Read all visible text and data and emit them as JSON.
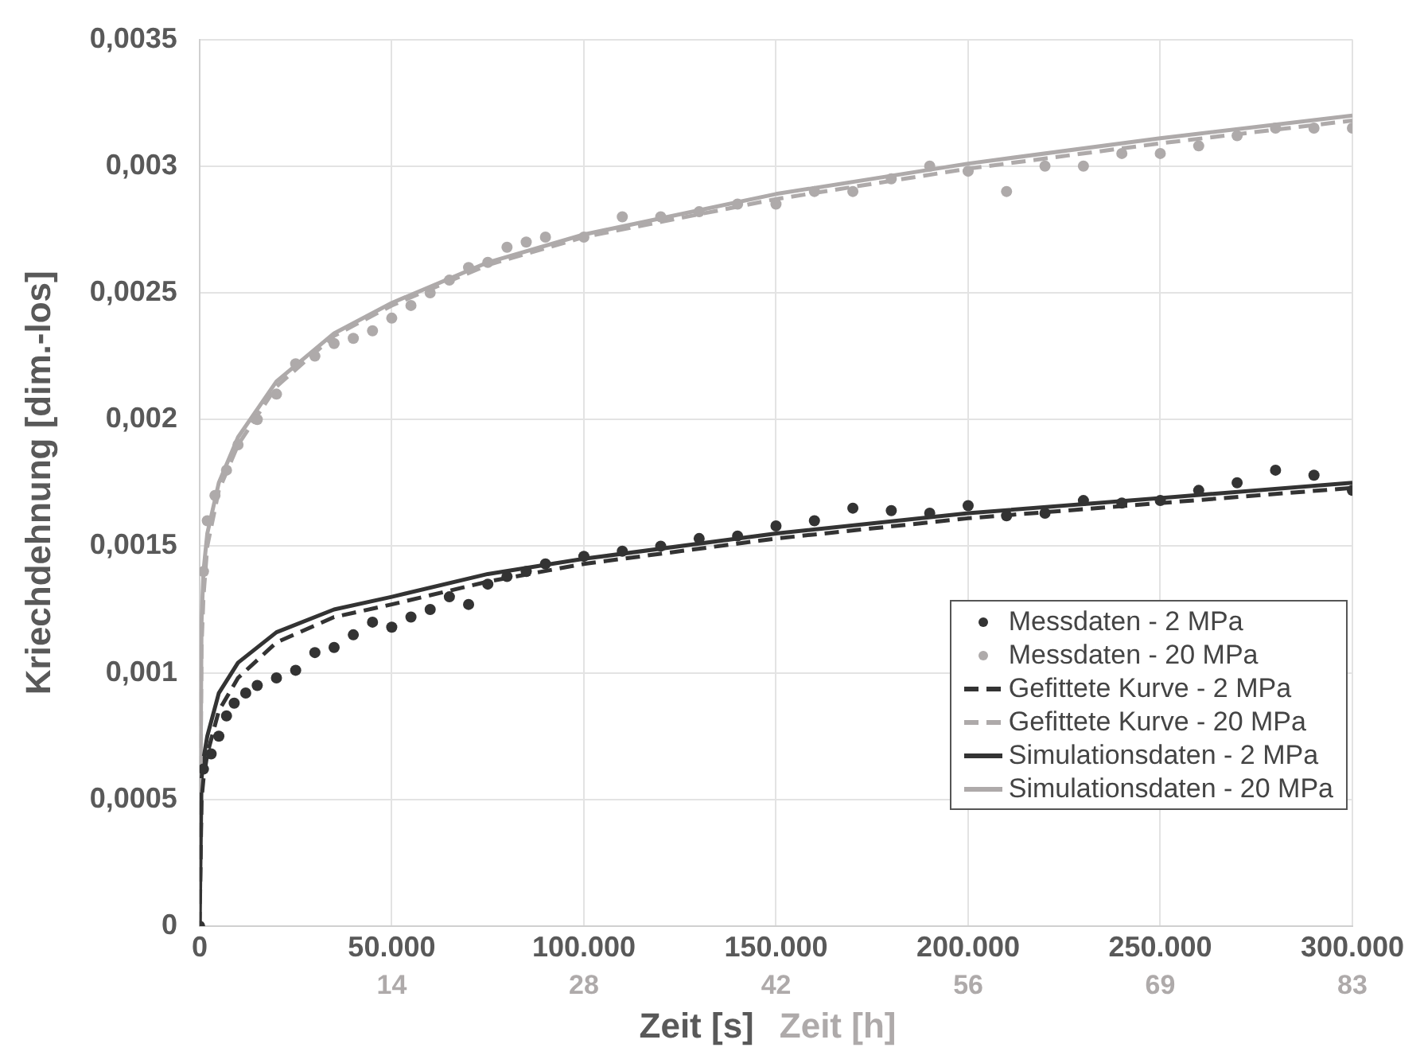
{
  "chart_data": {
    "type": "line",
    "xlabel": "Zeit [s]",
    "x2label": "Zeit [h]",
    "ylabel": "Kriechdehnung [dim.-los]",
    "xlim": [
      0,
      300000
    ],
    "xticks": [
      0,
      {
        "value": 50000,
        "label": "50.000"
      },
      {
        "value": 100000,
        "label": "100.000"
      },
      {
        "value": 150000,
        "label": "150.000"
      },
      {
        "value": 200000,
        "label": "200.000"
      },
      {
        "value": 250000,
        "label": "250.000"
      },
      {
        "value": 300000,
        "label": "300.000"
      }
    ],
    "x2lim": [
      0,
      83.33
    ],
    "x2ticks": [
      {
        "value": 13.89,
        "label": "14"
      },
      {
        "value": 27.78,
        "label": "28"
      },
      {
        "value": 41.67,
        "label": "42"
      },
      {
        "value": 55.56,
        "label": "56"
      },
      {
        "value": 69.44,
        "label": "69"
      },
      {
        "value": 83.33,
        "label": "83"
      }
    ],
    "ylim": [
      0,
      0.0035
    ],
    "yticks": [
      0,
      {
        "value": 0.0005,
        "label": "0,0005"
      },
      {
        "value": 0.001,
        "label": "0,001"
      },
      {
        "value": 0.0015,
        "label": "0,0015"
      },
      {
        "value": 0.002,
        "label": "0,002"
      },
      {
        "value": 0.0025,
        "label": "0,0025"
      },
      {
        "value": 0.003,
        "label": "0,003"
      },
      {
        "value": 0.0035,
        "label": "0,0035"
      }
    ],
    "grid": true,
    "legend": "bottom right",
    "series": [
      {
        "name": "Messdaten - 2 MPa",
        "type": "scatter",
        "marker": "circle",
        "color": "#333333",
        "x": [
          0,
          1000,
          3000,
          5000,
          7000,
          9000,
          12000,
          15000,
          20000,
          25000,
          30000,
          35000,
          40000,
          45000,
          50000,
          55000,
          60000,
          65000,
          70000,
          75000,
          80000,
          85000,
          90000,
          100000,
          110000,
          120000,
          130000,
          140000,
          150000,
          160000,
          170000,
          180000,
          190000,
          200000,
          210000,
          220000,
          230000,
          240000,
          250000,
          260000,
          270000,
          280000,
          290000,
          300000
        ],
        "values": [
          0,
          0.00062,
          0.00068,
          0.00075,
          0.00083,
          0.00088,
          0.00092,
          0.00095,
          0.00098,
          0.00101,
          0.00108,
          0.0011,
          0.00115,
          0.0012,
          0.00118,
          0.00122,
          0.00125,
          0.0013,
          0.00127,
          0.00135,
          0.00138,
          0.0014,
          0.00143,
          0.00146,
          0.00148,
          0.0015,
          0.00153,
          0.00154,
          0.00158,
          0.0016,
          0.00165,
          0.00164,
          0.00163,
          0.00166,
          0.00162,
          0.00163,
          0.00168,
          0.00167,
          0.00168,
          0.00172,
          0.00175,
          0.0018,
          0.00178,
          0.00172
        ]
      },
      {
        "name": "Messdaten - 20 MPa",
        "type": "scatter",
        "marker": "circle",
        "color": "#aeaaaa",
        "x": [
          1000,
          2000,
          4000,
          7000,
          10000,
          15000,
          20000,
          25000,
          30000,
          35000,
          40000,
          45000,
          50000,
          55000,
          60000,
          65000,
          70000,
          75000,
          80000,
          85000,
          90000,
          100000,
          110000,
          120000,
          130000,
          140000,
          150000,
          160000,
          170000,
          180000,
          190000,
          200000,
          210000,
          220000,
          230000,
          240000,
          250000,
          260000,
          270000,
          280000,
          290000,
          300000
        ],
        "values": [
          0.0014,
          0.0016,
          0.0017,
          0.0018,
          0.0019,
          0.002,
          0.0021,
          0.00222,
          0.00225,
          0.0023,
          0.00232,
          0.00235,
          0.0024,
          0.00245,
          0.0025,
          0.00255,
          0.0026,
          0.00262,
          0.00268,
          0.0027,
          0.00272,
          0.00272,
          0.0028,
          0.0028,
          0.00282,
          0.00285,
          0.00285,
          0.0029,
          0.0029,
          0.00295,
          0.003,
          0.00298,
          0.0029,
          0.003,
          0.003,
          0.00305,
          0.00305,
          0.00308,
          0.00312,
          0.00315,
          0.00315,
          0.00315
        ]
      },
      {
        "name": "Gefittete Kurve - 2 MPa",
        "line_style": "dashed",
        "marker": "none",
        "color": "#333333",
        "x": [
          0,
          500,
          1000,
          2000,
          5000,
          10000,
          20000,
          35000,
          50000,
          75000,
          100000,
          150000,
          200000,
          250000,
          300000
        ],
        "values": [
          0,
          0.0005,
          0.00058,
          0.00068,
          0.00085,
          0.00098,
          0.00112,
          0.00122,
          0.00127,
          0.00136,
          0.00143,
          0.00153,
          0.00161,
          0.00167,
          0.00173
        ]
      },
      {
        "name": "Gefittete Kurve - 20 MPa",
        "line_style": "dashed",
        "marker": "none",
        "color": "#aeaaaa",
        "x": [
          0,
          500,
          1000,
          2000,
          5000,
          10000,
          20000,
          35000,
          50000,
          75000,
          100000,
          150000,
          200000,
          250000,
          300000
        ],
        "values": [
          0,
          0.0011,
          0.0013,
          0.0015,
          0.00172,
          0.0019,
          0.00213,
          0.00233,
          0.00245,
          0.00261,
          0.00272,
          0.00287,
          0.00299,
          0.00309,
          0.00318
        ]
      },
      {
        "name": "Simulationsdaten - 2 MPa",
        "line_style": "solid",
        "marker": "none",
        "color": "#333333",
        "x": [
          0,
          500,
          1000,
          2000,
          5000,
          10000,
          20000,
          35000,
          50000,
          75000,
          100000,
          150000,
          200000,
          250000,
          300000
        ],
        "values": [
          0,
          0.00058,
          0.00066,
          0.00075,
          0.00092,
          0.00104,
          0.00116,
          0.00125,
          0.0013,
          0.00139,
          0.00145,
          0.00155,
          0.00163,
          0.00169,
          0.00175
        ]
      },
      {
        "name": "Simulationsdaten - 20 MPa",
        "line_style": "solid",
        "marker": "none",
        "color": "#aeaaaa",
        "x": [
          0,
          500,
          1000,
          2000,
          5000,
          10000,
          20000,
          35000,
          50000,
          75000,
          100000,
          150000,
          200000,
          250000,
          300000
        ],
        "values": [
          0,
          0.0012,
          0.0014,
          0.00155,
          0.00175,
          0.00193,
          0.00215,
          0.00234,
          0.00246,
          0.00262,
          0.00273,
          0.00289,
          0.00301,
          0.00311,
          0.0032
        ]
      }
    ]
  }
}
